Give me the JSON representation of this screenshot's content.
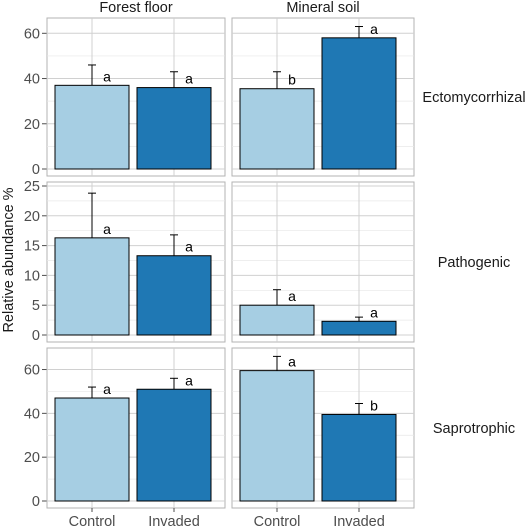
{
  "chart_data": {
    "type": "bar",
    "ylabel": "Relative abundance %",
    "categories": [
      "Control",
      "Invaded"
    ],
    "columns": [
      "Forest floor",
      "Mineral soil"
    ],
    "colors": {
      "Control": "#a6cee3",
      "Invaded": "#1f78b4"
    },
    "grid": true,
    "rows": [
      {
        "name": "Ectomycorrhizal",
        "ylim": [
          0,
          65
        ],
        "yticks": [
          0,
          20,
          40,
          60
        ],
        "panels": [
          {
            "column": "Forest floor",
            "values": [
              37,
              36
            ],
            "errors": [
              46,
              43
            ],
            "labels": [
              "a",
              "a"
            ]
          },
          {
            "column": "Mineral soil",
            "values": [
              35.5,
              58
            ],
            "errors": [
              43,
              63
            ],
            "labels": [
              "b",
              "a"
            ]
          }
        ]
      },
      {
        "name": "Pathogenic",
        "ylim": [
          0,
          25
        ],
        "yticks": [
          0,
          5,
          10,
          15,
          20,
          25
        ],
        "panels": [
          {
            "column": "Forest floor",
            "values": [
              16.3,
              13.3
            ],
            "errors": [
              23.8,
              16.8
            ],
            "labels": [
              "a",
              "a"
            ]
          },
          {
            "column": "Mineral soil",
            "values": [
              5.0,
              2.3
            ],
            "errors": [
              7.6,
              3.0
            ],
            "labels": [
              "a",
              "a"
            ]
          }
        ]
      },
      {
        "name": "Saprotrophic",
        "ylim": [
          0,
          68
        ],
        "yticks": [
          0,
          20,
          40,
          60
        ],
        "panels": [
          {
            "column": "Forest floor",
            "values": [
              47,
              51
            ],
            "errors": [
              52,
              56
            ],
            "labels": [
              "a",
              "a"
            ]
          },
          {
            "column": "Mineral soil",
            "values": [
              59.5,
              39.5
            ],
            "errors": [
              66,
              44.5
            ],
            "labels": [
              "a",
              "b"
            ]
          }
        ]
      }
    ]
  }
}
